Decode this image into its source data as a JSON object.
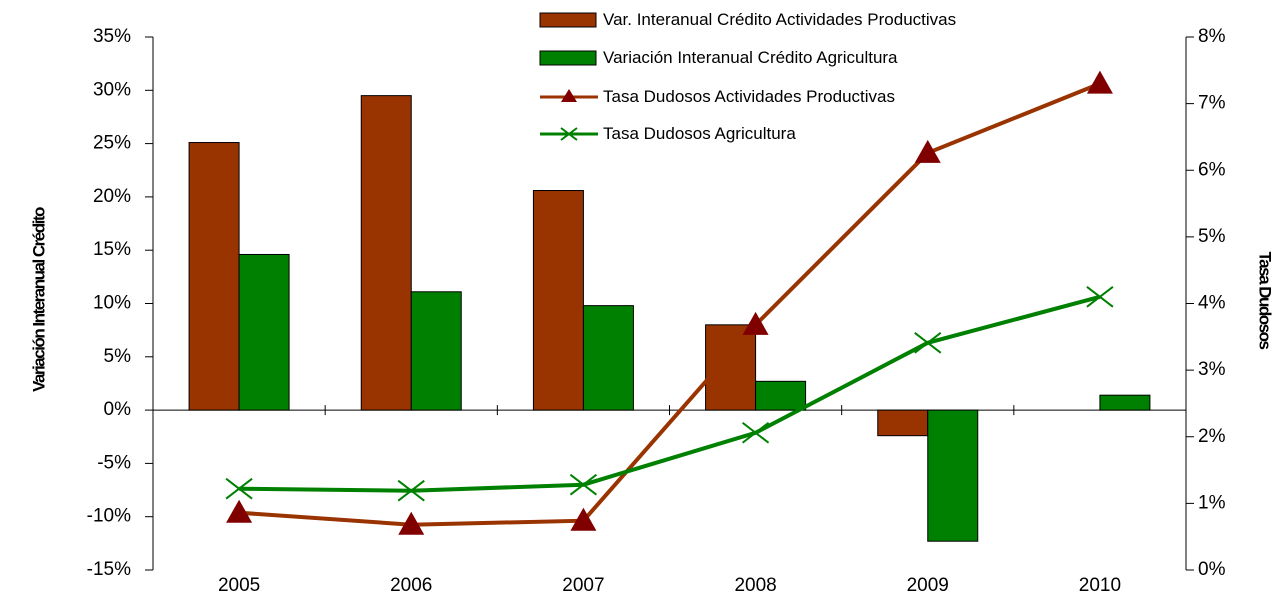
{
  "chart_data": {
    "type": "combo",
    "categories": [
      "2005",
      "2006",
      "2007",
      "2008",
      "2009",
      "2010"
    ],
    "y_label": "Variación Interanual Crédito",
    "y2_label": "Tasa Dudosos",
    "ylim": [
      -15,
      35
    ],
    "yticks": [
      {
        "value": -15,
        "label": "-15%"
      },
      {
        "value": -10,
        "label": "-10%"
      },
      {
        "value": -5,
        "label": "-5%"
      },
      {
        "value": 0,
        "label": "0%"
      },
      {
        "value": 5,
        "label": "5%"
      },
      {
        "value": 10,
        "label": "10%"
      },
      {
        "value": 15,
        "label": "15%"
      },
      {
        "value": 20,
        "label": "20%"
      },
      {
        "value": 25,
        "label": "25%"
      },
      {
        "value": 30,
        "label": "30%"
      },
      {
        "value": 35,
        "label": "35%"
      }
    ],
    "y2lim": [
      0,
      8
    ],
    "y2ticks": [
      {
        "value": 0,
        "label": "0%"
      },
      {
        "value": 1,
        "label": "1%"
      },
      {
        "value": 2,
        "label": "2%"
      },
      {
        "value": 3,
        "label": "3%"
      },
      {
        "value": 4,
        "label": "4%"
      },
      {
        "value": 5,
        "label": "5%"
      },
      {
        "value": 6,
        "label": "6%"
      },
      {
        "value": 7,
        "label": "7%"
      },
      {
        "value": 8,
        "label": "8%"
      }
    ],
    "series": [
      {
        "name": "Var. Interanual Crédito Actividades Productivas",
        "type": "bar",
        "color": "#993300",
        "values": [
          25.1,
          29.5,
          20.6,
          8.0,
          -2.4,
          null
        ]
      },
      {
        "name": "Variación Interanual Crédito Agricultura",
        "type": "bar",
        "color": "#008000",
        "values": [
          14.6,
          11.1,
          9.8,
          2.7,
          -12.3,
          1.4
        ]
      },
      {
        "name": "Tasa Dudosos Actividades Productivas",
        "type": "line",
        "marker": "triangle",
        "color": "#993300",
        "marker_color": "#800000",
        "axis": "y2",
        "values": [
          0.86,
          0.68,
          0.74,
          3.68,
          6.26,
          7.3
        ]
      },
      {
        "name": "Tasa Dudosos Agricultura",
        "type": "line",
        "marker": "x",
        "color": "#008000",
        "axis": "y2",
        "values": [
          1.22,
          1.19,
          1.28,
          2.06,
          3.41,
          4.1
        ]
      }
    ]
  }
}
